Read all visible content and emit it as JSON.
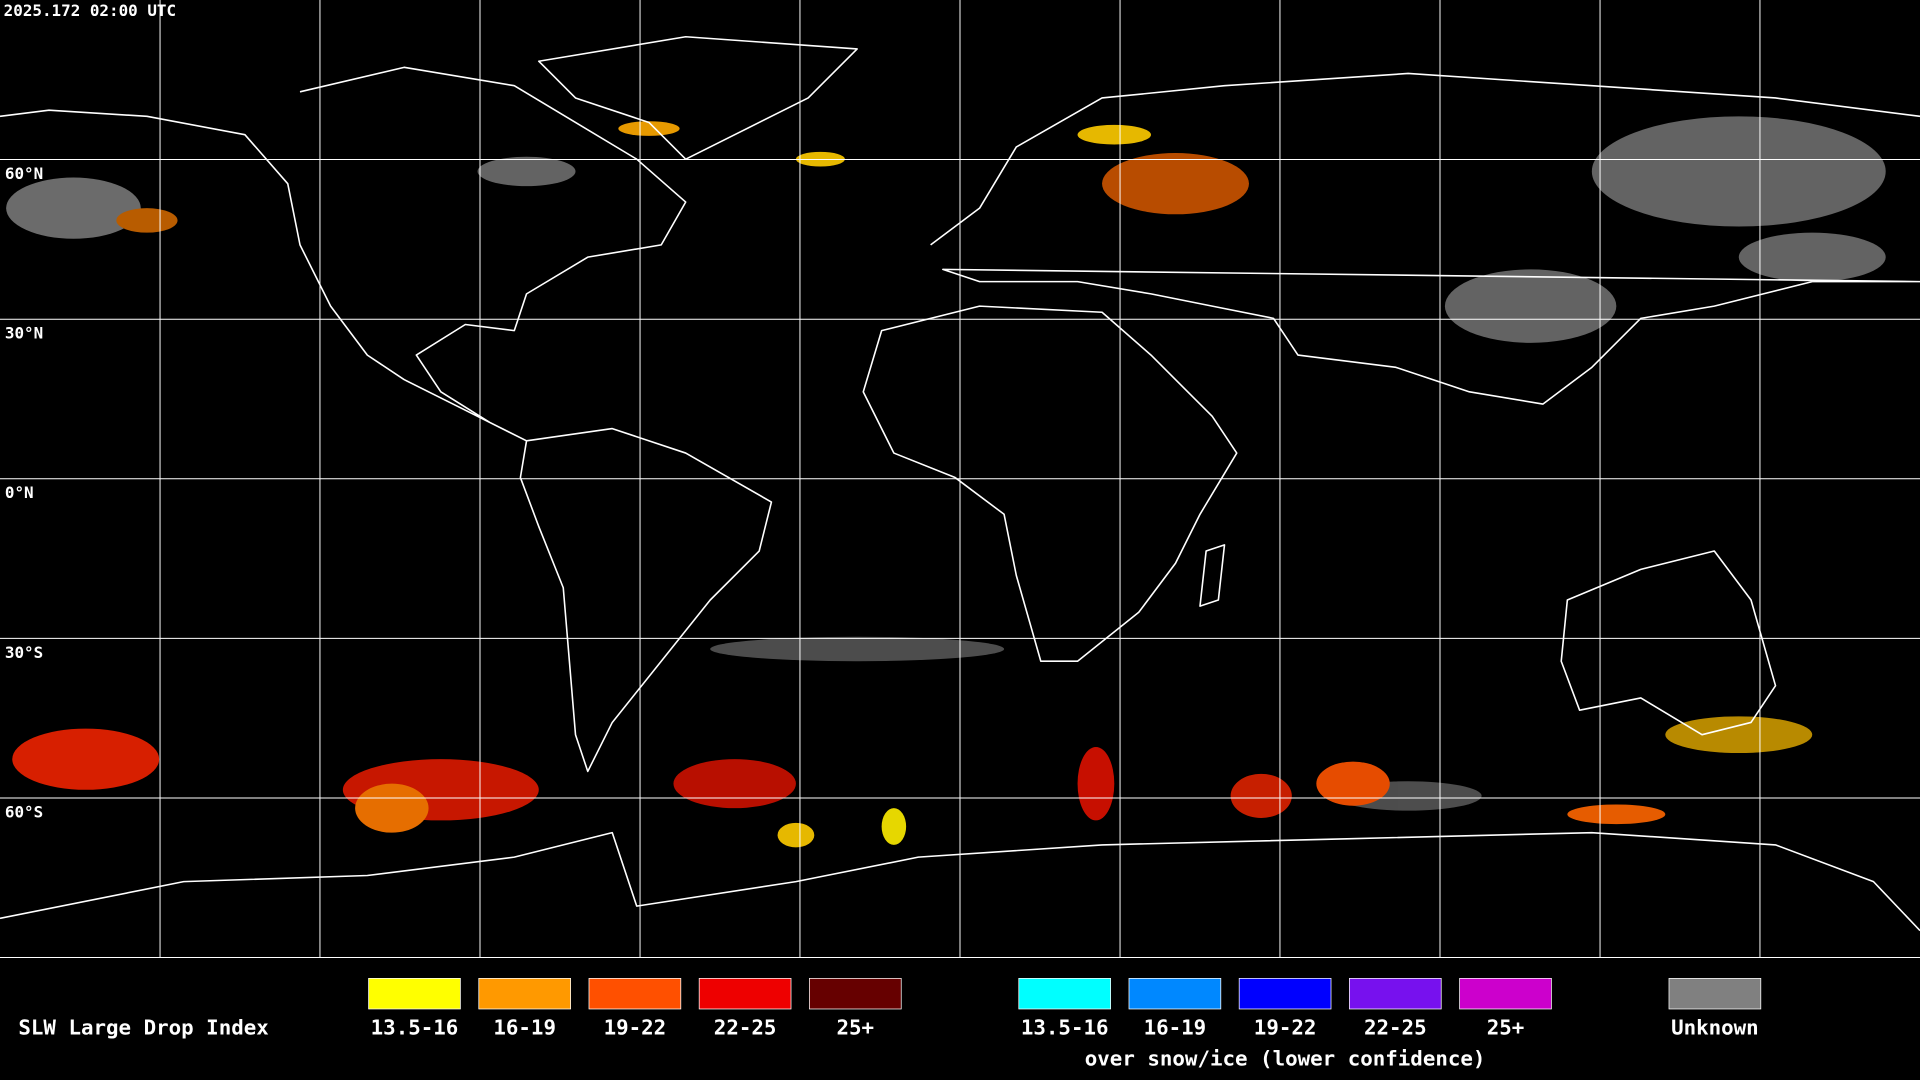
{
  "header": {
    "timestamp": "2025.172 02:00 UTC"
  },
  "map": {
    "latitude_labels": [
      "60°N",
      "30°N",
      "0°N",
      "30°S",
      "60°S"
    ]
  },
  "legend": {
    "title": "SLW Large Drop Index",
    "groups": [
      {
        "items": [
          {
            "label": "13.5-16",
            "color": "#ffff00"
          },
          {
            "label": "16-19",
            "color": "#ff9900"
          },
          {
            "label": "19-22",
            "color": "#ff5000"
          },
          {
            "label": "22-25",
            "color": "#ee0000"
          },
          {
            "label": "25+",
            "color": "#660000"
          }
        ]
      },
      {
        "items": [
          {
            "label": "13.5-16",
            "color": "#00ffff"
          },
          {
            "label": "16-19",
            "color": "#0088ff"
          },
          {
            "label": "19-22",
            "color": "#0000ff"
          },
          {
            "label": "22-25",
            "color": "#7711ee"
          },
          {
            "label": "25+",
            "color": "#cc00cc"
          }
        ],
        "caption": "over snow/ice (lower confidence)"
      }
    ],
    "unknown": {
      "label": "Unknown",
      "color": "#808080"
    }
  }
}
